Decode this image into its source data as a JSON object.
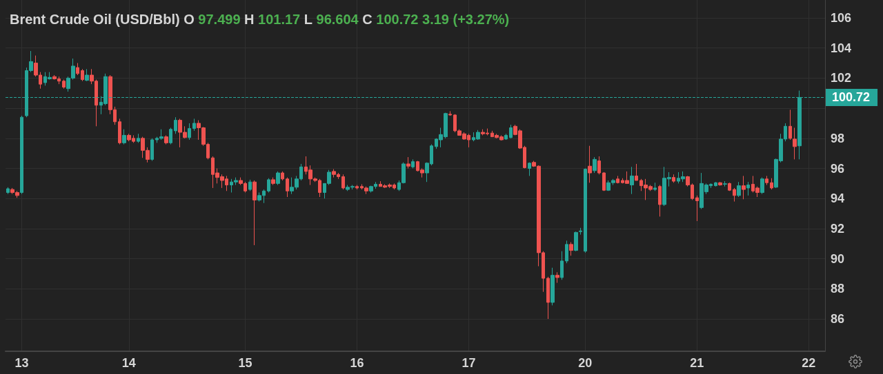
{
  "chart_data": {
    "type": "candlestick",
    "title": "Brent Crude Oil (USD/Bbl)",
    "annotations": [
      "O",
      "97.499",
      "H",
      "101.17",
      "L",
      "96.604",
      "C",
      "100.72",
      "3.19 (+3.27%)"
    ],
    "categories": [
      null,
      null,
      null,
      "13",
      null,
      null,
      null,
      null,
      null,
      null,
      null,
      null,
      null,
      null,
      null,
      null,
      null,
      null,
      null,
      null,
      null,
      null,
      null,
      null,
      null,
      null,
      "14",
      null,
      null,
      null,
      null,
      null,
      null,
      null,
      null,
      null,
      null,
      null,
      null,
      null,
      null,
      null,
      null,
      null,
      null,
      null,
      null,
      null,
      null,
      null,
      null,
      "15",
      null,
      null,
      null,
      null,
      null,
      null,
      null,
      null,
      null,
      null,
      null,
      null,
      null,
      null,
      null,
      null,
      null,
      null,
      null,
      null,
      null,
      null,
      null,
      "16",
      null,
      null,
      null,
      null,
      null,
      null,
      null,
      null,
      null,
      null,
      null,
      null,
      null,
      null,
      null,
      null,
      null,
      null,
      null,
      null,
      null,
      null,
      null,
      "17",
      null,
      null,
      null,
      null,
      null,
      null,
      null,
      null,
      null,
      null,
      null,
      null,
      null,
      null,
      null,
      null,
      null,
      null,
      null,
      null,
      null,
      null,
      null,
      null,
      "20",
      null,
      null,
      null,
      null,
      null,
      null,
      null,
      null,
      null,
      null,
      null,
      null,
      null,
      null,
      null,
      null,
      null,
      null,
      null,
      null,
      null,
      null,
      null,
      "21",
      null,
      null,
      null,
      null,
      null,
      null,
      null,
      null,
      null,
      null,
      null,
      null,
      null,
      null,
      null,
      null,
      null,
      null,
      null,
      null,
      null,
      null,
      null,
      "22",
      null,
      null,
      null
    ],
    "ohlc": [
      [
        94.4,
        94.75,
        94.3,
        94.65
      ],
      [
        94.6,
        94.7,
        94.3,
        94.4
      ],
      [
        94.4,
        94.5,
        94.05,
        94.2
      ],
      [
        94.4,
        99.5,
        94.3,
        99.4
      ],
      [
        99.5,
        102.7,
        99.4,
        102.5
      ],
      [
        102.5,
        103.8,
        102.4,
        103.1
      ],
      [
        103.0,
        103.5,
        102.1,
        102.2
      ],
      [
        102.2,
        102.4,
        101.3,
        101.6
      ],
      [
        101.7,
        102.4,
        101.5,
        102.1
      ],
      [
        101.95,
        102.4,
        101.9,
        102.05
      ],
      [
        102.1,
        102.2,
        101.9,
        101.95
      ],
      [
        101.95,
        102.1,
        101.6,
        101.8
      ],
      [
        101.8,
        101.9,
        101.3,
        101.4
      ],
      [
        101.3,
        102.1,
        101.1,
        102.0
      ],
      [
        102.0,
        103.3,
        101.9,
        102.8
      ],
      [
        102.7,
        103.0,
        102.2,
        102.3
      ],
      [
        102.5,
        102.6,
        101.8,
        101.9
      ],
      [
        101.85,
        102.6,
        101.8,
        102.2
      ],
      [
        102.2,
        102.6,
        101.6,
        101.8
      ],
      [
        101.8,
        101.9,
        98.8,
        100.2
      ],
      [
        100.2,
        100.8,
        99.6,
        100.4
      ],
      [
        100.3,
        102.3,
        100.2,
        102.1
      ],
      [
        102.1,
        102.2,
        99.6,
        99.9
      ],
      [
        99.9,
        100.1,
        98.9,
        99.1
      ],
      [
        99.1,
        99.3,
        97.6,
        97.7
      ],
      [
        97.7,
        98.6,
        97.6,
        98.2
      ],
      [
        98.2,
        98.3,
        97.8,
        97.9
      ],
      [
        98.0,
        98.2,
        97.7,
        97.8
      ],
      [
        97.8,
        98.3,
        97.7,
        98.0
      ],
      [
        98.0,
        98.1,
        96.7,
        97.2
      ],
      [
        97.2,
        97.4,
        96.4,
        96.6
      ],
      [
        96.6,
        98.0,
        96.5,
        97.9
      ],
      [
        97.9,
        98.1,
        97.7,
        98.0
      ],
      [
        98.0,
        98.6,
        97.9,
        98.1
      ],
      [
        98.1,
        98.2,
        97.6,
        97.7
      ],
      [
        97.7,
        98.7,
        97.6,
        98.6
      ],
      [
        98.5,
        99.4,
        98.3,
        99.2
      ],
      [
        99.2,
        99.3,
        97.4,
        98.4
      ],
      [
        98.4,
        98.8,
        98.0,
        98.05
      ],
      [
        98.05,
        99.0,
        97.9,
        98.65
      ],
      [
        98.65,
        99.3,
        98.5,
        99.0
      ],
      [
        99.0,
        99.2,
        97.9,
        98.7
      ],
      [
        98.7,
        98.75,
        97.5,
        97.6
      ],
      [
        97.6,
        97.7,
        96.6,
        96.7
      ],
      [
        96.7,
        96.8,
        94.7,
        95.6
      ],
      [
        95.7,
        96.0,
        95.0,
        95.4
      ],
      [
        95.45,
        95.6,
        94.7,
        95.2
      ],
      [
        95.3,
        95.5,
        94.5,
        94.9
      ],
      [
        94.9,
        95.3,
        94.4,
        95.1
      ],
      [
        95.1,
        95.4,
        94.9,
        95.2
      ],
      [
        95.2,
        95.4,
        94.9,
        95.0
      ],
      [
        95.0,
        95.1,
        94.4,
        94.5
      ],
      [
        94.6,
        95.25,
        94.5,
        95.1
      ],
      [
        95.1,
        95.2,
        90.9,
        93.9
      ],
      [
        93.9,
        94.4,
        93.8,
        94.2
      ],
      [
        94.2,
        94.6,
        93.7,
        94.5
      ],
      [
        94.5,
        95.35,
        94.4,
        95.25
      ],
      [
        95.25,
        95.4,
        94.9,
        95.0
      ],
      [
        95.0,
        95.8,
        94.9,
        95.7
      ],
      [
        95.7,
        95.8,
        95.2,
        95.3
      ],
      [
        95.3,
        95.4,
        94.1,
        94.5
      ],
      [
        94.5,
        95.4,
        94.3,
        94.75
      ],
      [
        94.75,
        95.5,
        94.6,
        95.3
      ],
      [
        95.3,
        96.3,
        95.2,
        96.1
      ],
      [
        96.1,
        96.8,
        95.6,
        95.8
      ],
      [
        95.9,
        96.2,
        94.9,
        95.3
      ],
      [
        95.3,
        95.4,
        95.1,
        95.2
      ],
      [
        95.2,
        95.3,
        94.1,
        94.4
      ],
      [
        94.4,
        95.0,
        94.0,
        95.0
      ],
      [
        95.0,
        95.9,
        94.9,
        95.75
      ],
      [
        95.8,
        95.95,
        95.4,
        95.6
      ],
      [
        95.6,
        95.7,
        95.3,
        95.45
      ],
      [
        95.45,
        95.6,
        94.6,
        94.7
      ],
      [
        94.6,
        94.9,
        94.5,
        94.75
      ],
      [
        94.75,
        94.9,
        94.6,
        94.8
      ],
      [
        94.8,
        94.9,
        94.6,
        94.7
      ],
      [
        94.8,
        94.95,
        94.6,
        94.7
      ],
      [
        94.7,
        94.8,
        94.3,
        94.5
      ],
      [
        94.5,
        94.85,
        94.4,
        94.8
      ],
      [
        94.8,
        95.1,
        94.65,
        94.95
      ],
      [
        94.95,
        95.15,
        94.8,
        94.8
      ],
      [
        94.85,
        94.95,
        94.7,
        94.75
      ],
      [
        94.9,
        95.0,
        94.7,
        94.8
      ],
      [
        94.9,
        95.0,
        94.6,
        94.7
      ],
      [
        94.6,
        95.2,
        94.5,
        95.05
      ],
      [
        95.05,
        96.4,
        95.0,
        96.3
      ],
      [
        96.3,
        96.75,
        96.0,
        96.15
      ],
      [
        96.1,
        96.6,
        96.0,
        96.45
      ],
      [
        96.45,
        96.5,
        95.8,
        95.85
      ],
      [
        95.9,
        96.0,
        95.4,
        95.7
      ],
      [
        95.7,
        96.4,
        95.1,
        96.35
      ],
      [
        96.3,
        97.6,
        96.2,
        97.5
      ],
      [
        97.45,
        98.0,
        97.3,
        97.95
      ],
      [
        97.9,
        98.7,
        97.4,
        98.25
      ],
      [
        98.1,
        99.7,
        98.0,
        99.65
      ],
      [
        99.6,
        99.8,
        99.5,
        99.55
      ],
      [
        99.55,
        99.6,
        98.4,
        98.5
      ],
      [
        98.5,
        98.6,
        98.2,
        98.2
      ],
      [
        98.3,
        98.4,
        97.9,
        97.95
      ],
      [
        98.2,
        98.3,
        97.4,
        97.9
      ],
      [
        97.9,
        98.4,
        97.8,
        98.05
      ],
      [
        97.95,
        98.55,
        97.9,
        98.4
      ],
      [
        98.4,
        98.6,
        98.2,
        98.3
      ],
      [
        98.35,
        98.65,
        98.2,
        98.3
      ],
      [
        98.35,
        98.5,
        98.1,
        98.1
      ],
      [
        98.2,
        98.3,
        98.0,
        98.05
      ],
      [
        98.1,
        98.2,
        97.85,
        97.9
      ],
      [
        97.95,
        98.3,
        97.9,
        98.2
      ],
      [
        98.05,
        98.9,
        98.0,
        98.7
      ],
      [
        98.8,
        98.9,
        98.2,
        98.25
      ],
      [
        98.5,
        98.6,
        97.3,
        97.35
      ],
      [
        97.4,
        97.5,
        96.0,
        96.05
      ],
      [
        96.0,
        96.4,
        95.5,
        96.35
      ],
      [
        96.4,
        96.5,
        96.1,
        96.15
      ],
      [
        96.15,
        96.2,
        89.5,
        90.4
      ],
      [
        90.4,
        90.5,
        87.8,
        88.7
      ],
      [
        88.7,
        88.8,
        86.0,
        87.1
      ],
      [
        87.1,
        89.4,
        86.9,
        88.9
      ],
      [
        88.9,
        89.1,
        88.4,
        88.75
      ],
      [
        88.75,
        90.5,
        88.6,
        89.85
      ],
      [
        89.85,
        91.2,
        89.7,
        90.95
      ],
      [
        90.95,
        91.1,
        90.2,
        90.55
      ],
      [
        90.55,
        91.8,
        90.5,
        91.75
      ],
      [
        91.8,
        92.05,
        91.6,
        91.85
      ],
      [
        90.5,
        96.0,
        90.4,
        95.95
      ],
      [
        96.15,
        97.5,
        95.05,
        95.7
      ],
      [
        95.85,
        96.75,
        95.7,
        96.6
      ],
      [
        96.5,
        96.8,
        95.6,
        95.7
      ],
      [
        95.7,
        95.75,
        94.5,
        94.55
      ],
      [
        94.55,
        95.2,
        94.5,
        95.05
      ],
      [
        95.05,
        95.3,
        94.9,
        95.2
      ],
      [
        95.3,
        95.5,
        95.0,
        95.05
      ],
      [
        95.2,
        95.35,
        95.0,
        95.05
      ],
      [
        95.2,
        95.8,
        95.0,
        95.0
      ],
      [
        94.9,
        96.1,
        94.3,
        95.5
      ],
      [
        95.5,
        96.3,
        95.2,
        95.2
      ],
      [
        95.2,
        95.3,
        94.5,
        94.85
      ],
      [
        94.9,
        95.3,
        93.9,
        94.7
      ],
      [
        94.8,
        94.9,
        94.5,
        94.6
      ],
      [
        94.6,
        95.05,
        94.5,
        94.7
      ],
      [
        94.8,
        94.9,
        92.8,
        93.6
      ],
      [
        93.6,
        96.1,
        93.5,
        95.35
      ],
      [
        95.3,
        95.75,
        94.8,
        95.4
      ],
      [
        95.4,
        95.6,
        95.05,
        95.15
      ],
      [
        95.15,
        95.75,
        95.0,
        95.35
      ],
      [
        95.3,
        95.8,
        95.1,
        95.45
      ],
      [
        95.45,
        95.5,
        94.8,
        94.9
      ],
      [
        94.9,
        95.0,
        93.9,
        94.0
      ],
      [
        94.05,
        94.2,
        92.5,
        93.85
      ],
      [
        93.4,
        95.7,
        93.3,
        95.0
      ],
      [
        94.45,
        95.0,
        94.3,
        94.9
      ],
      [
        94.85,
        95.0,
        94.7,
        94.95
      ],
      [
        94.85,
        95.1,
        94.8,
        95.05
      ],
      [
        95.05,
        95.1,
        94.85,
        94.9
      ],
      [
        94.95,
        95.15,
        94.8,
        94.98
      ],
      [
        95.0,
        95.05,
        94.5,
        94.55
      ],
      [
        94.6,
        94.7,
        93.8,
        94.2
      ],
      [
        94.2,
        95.1,
        94.1,
        94.85
      ],
      [
        94.85,
        95.5,
        93.95,
        94.6
      ],
      [
        94.7,
        95.1,
        94.2,
        94.9
      ],
      [
        94.95,
        95.5,
        94.4,
        94.5
      ],
      [
        94.7,
        94.8,
        94.1,
        94.4
      ],
      [
        94.4,
        95.4,
        94.3,
        95.3
      ],
      [
        95.3,
        95.5,
        94.9,
        95.05
      ],
      [
        95.05,
        95.35,
        94.6,
        94.7
      ],
      [
        94.75,
        96.65,
        94.7,
        96.6
      ],
      [
        96.5,
        98.3,
        96.4,
        97.95
      ],
      [
        97.95,
        99.0,
        97.8,
        98.8
      ],
      [
        98.8,
        99.9,
        97.9,
        98.0
      ],
      [
        97.95,
        98.7,
        96.6,
        97.45
      ],
      [
        97.499,
        101.17,
        96.604,
        100.72
      ],
      null,
      null,
      null,
      null,
      null
    ],
    "colors": [
      "#26a69a",
      "#ef5350",
      "#ef5350",
      "#26a69a",
      "#26a69a",
      "#26a69a",
      "#ef5350",
      "#ef5350",
      "#26a69a",
      "#26a69a",
      "#ef5350",
      "#ef5350",
      "#ef5350",
      "#26a69a",
      "#26a69a",
      "#ef5350",
      "#ef5350",
      "#26a69a",
      "#ef5350",
      "#ef5350",
      "#26a69a",
      "#26a69a",
      "#ef5350",
      "#ef5350",
      "#ef5350",
      "#26a69a",
      "#ef5350",
      "#ef5350",
      "#26a69a",
      "#ef5350",
      "#ef5350",
      "#26a69a",
      "#26a69a",
      "#26a69a",
      "#ef5350",
      "#26a69a",
      "#26a69a",
      "#ef5350",
      "#ef5350",
      "#26a69a",
      "#26a69a",
      "#ef5350",
      "#ef5350",
      "#ef5350",
      "#ef5350",
      "#ef5350",
      "#ef5350",
      "#ef5350",
      "#26a69a",
      "#26a69a",
      "#ef5350",
      "#ef5350",
      "#26a69a",
      "#ef5350",
      "#26a69a",
      "#26a69a",
      "#26a69a",
      "#ef5350",
      "#26a69a",
      "#ef5350",
      "#ef5350",
      "#26a69a",
      "#26a69a",
      "#26a69a",
      "#ef5350",
      "#ef5350",
      "#ef5350",
      "#ef5350",
      "#26a69a",
      "#26a69a",
      "#ef5350",
      "#ef5350",
      "#ef5350",
      "#26a69a",
      "#26a69a",
      "#ef5350",
      "#ef5350",
      "#ef5350",
      "#26a69a",
      "#26a69a",
      "#ef5350",
      "#ef5350",
      "#ef5350",
      "#ef5350",
      "#26a69a",
      "#26a69a",
      "#ef5350",
      "#26a69a",
      "#ef5350",
      "#ef5350",
      "#26a69a",
      "#26a69a",
      "#26a69a",
      "#26a69a",
      "#26a69a",
      "#ef5350",
      "#ef5350",
      "#ef5350",
      "#ef5350",
      "#ef5350",
      "#26a69a",
      "#26a69a",
      "#ef5350",
      "#ef5350",
      "#ef5350",
      "#ef5350",
      "#ef5350",
      "#26a69a",
      "#26a69a",
      "#ef5350",
      "#ef5350",
      "#ef5350",
      "#26a69a",
      "#ef5350",
      "#ef5350",
      "#ef5350",
      "#ef5350",
      "#26a69a",
      "#ef5350",
      "#26a69a",
      "#26a69a",
      "#ef5350",
      "#26a69a",
      "#26a69a",
      "#26a69a",
      "#ef5350",
      "#26a69a",
      "#ef5350",
      "#ef5350",
      "#26a69a",
      "#26a69a",
      "#ef5350",
      "#ef5350",
      "#ef5350",
      "#26a69a",
      "#ef5350",
      "#ef5350",
      "#ef5350",
      "#ef5350",
      "#26a69a",
      "#ef5350",
      "#26a69a",
      "#26a69a",
      "#ef5350",
      "#26a69a",
      "#26a69a",
      "#ef5350",
      "#ef5350",
      "#ef5350",
      "#26a69a",
      "#26a69a",
      "#26a69a",
      "#26a69a",
      "#ef5350",
      "#26a69a",
      "#ef5350",
      "#ef5350",
      "#26a69a",
      "#ef5350",
      "#26a69a",
      "#ef5350",
      "#ef5350",
      "#26a69a",
      "#ef5350",
      "#ef5350",
      "#26a69a",
      "#26a69a",
      "#26a69a",
      "#ef5350",
      "#ef5350",
      "#26a69a",
      null,
      null,
      null,
      null,
      null
    ],
    "ylim": [
      83.85,
      107.19
    ],
    "yticks": [
      86,
      88,
      90,
      92,
      94,
      96,
      98,
      {
        "value": 100,
        "label": null
      },
      102,
      104,
      106
    ],
    "grid": true,
    "ref_lines": [
      {
        "axis": "y",
        "value": 100.72,
        "label": "100.72",
        "color": "#26a69a",
        "line_style": "dashed"
      }
    ]
  }
}
